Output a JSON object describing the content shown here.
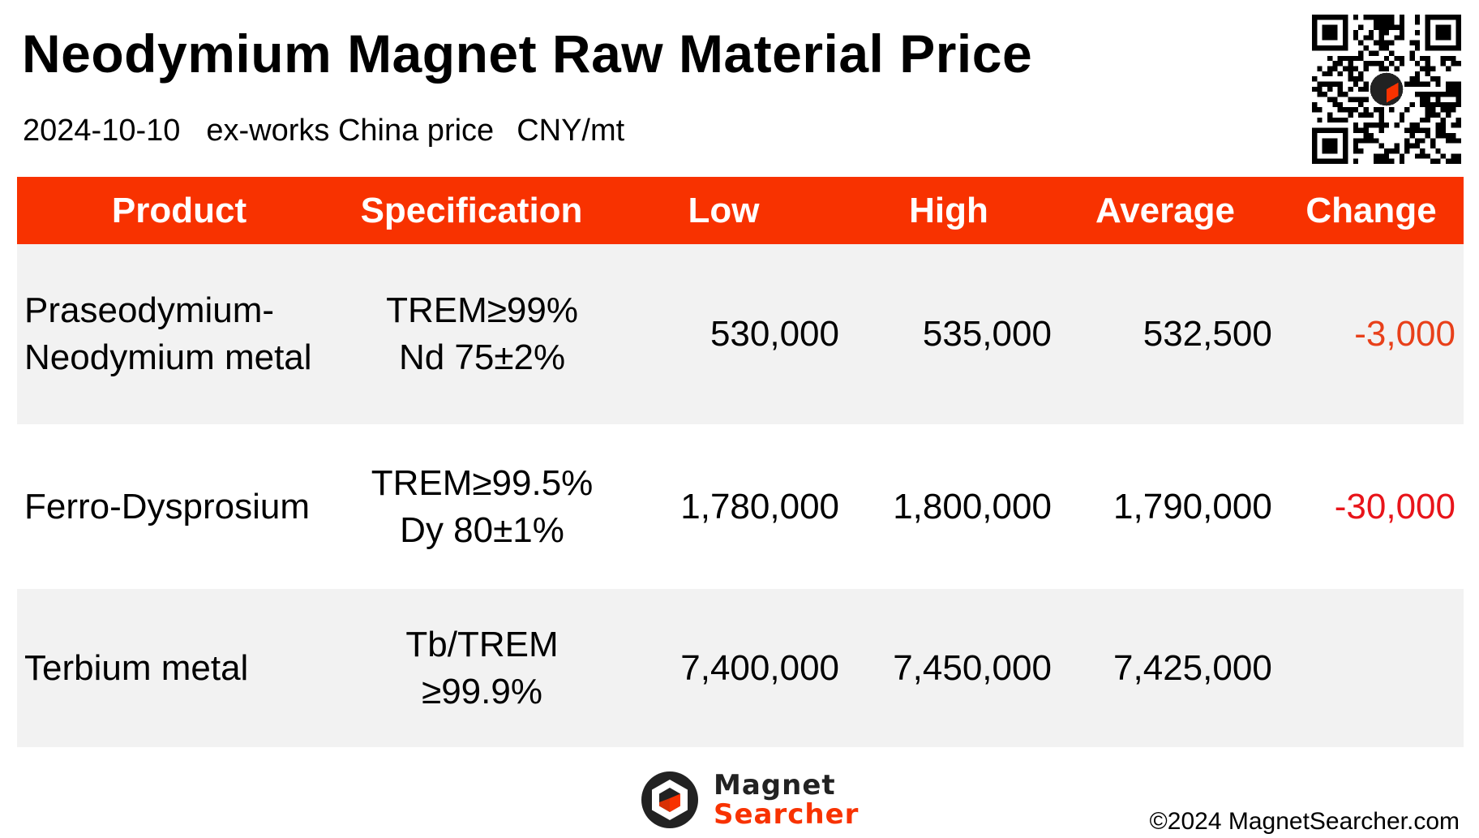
{
  "title": "Neodymium Magnet Raw Material Price",
  "subtitle": {
    "date": "2024-10-10",
    "basis": "ex-works China price",
    "unit": "CNY/mt"
  },
  "colors": {
    "header_bg": "#F83200",
    "header_text": "#FFFFFF",
    "row_shade": "#F2F2F2",
    "row_plain": "#FFFFFF",
    "change_row1": "#E8401A",
    "change_row2": "#E8141A",
    "logo_dark": "#222222",
    "logo_accent": "#F83200"
  },
  "table": {
    "headers": {
      "product": "Product",
      "specification": "Specification",
      "low": "Low",
      "high": "High",
      "average": "Average",
      "change": "Change"
    },
    "rows": [
      {
        "product_line1": "Praseodymium-",
        "product_line2": "Neodymium metal",
        "spec_line1": "TREM≥99%",
        "spec_line2": "Nd 75±2%",
        "low": "530,000",
        "high": "535,000",
        "average": "532,500",
        "change": "-3,000"
      },
      {
        "product_line1": "Ferro-Dysprosium",
        "product_line2": "",
        "spec_line1": "TREM≥99.5%",
        "spec_line2": "Dy 80±1%",
        "low": "1,780,000",
        "high": "1,800,000",
        "average": "1,790,000",
        "change": "-30,000"
      },
      {
        "product_line1": "Terbium metal",
        "product_line2": "",
        "spec_line1": "Tb/TREM",
        "spec_line2": "≥99.9%",
        "low": "7,400,000",
        "high": "7,450,000",
        "average": "7,425,000",
        "change": ""
      }
    ]
  },
  "logo": {
    "line1": "Magnet",
    "line2": "Searcher",
    "icon": "magnet-searcher-logo-icon"
  },
  "qr_icon": "qr-code-icon",
  "copyright": "©2024 MagnetSearcher.com"
}
